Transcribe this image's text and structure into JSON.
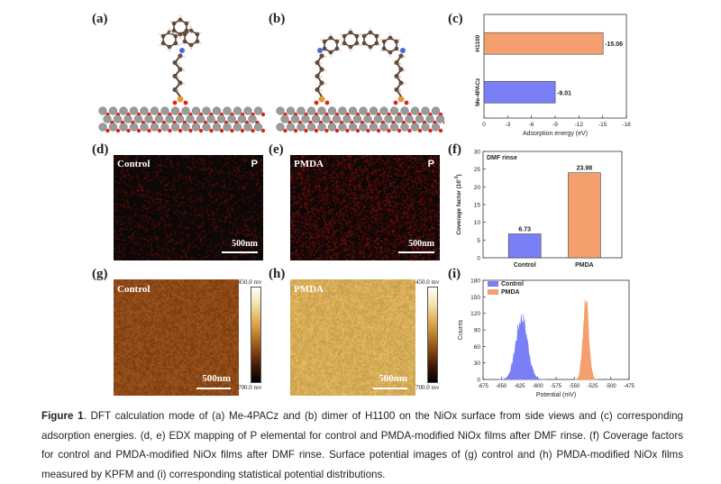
{
  "panel_labels": {
    "a": "(a)",
    "b": "(b)",
    "c": "(c)",
    "d": "(d)",
    "e": "(e)",
    "f": "(f)",
    "g": "(g)",
    "h": "(h)",
    "i": "(i)"
  },
  "edx": {
    "d": {
      "tag": "Control",
      "element": "P",
      "scale": "500nm"
    },
    "e": {
      "tag": "PMDA",
      "element": "P",
      "scale": "500nm"
    }
  },
  "kpfm": {
    "g": {
      "tag": "Control",
      "scale": "500nm",
      "cb_top": "450.0 mv",
      "cb_bottom": "700.0 mv"
    },
    "h": {
      "tag": "PMDA",
      "scale": "500nm",
      "cb_top": "450.0 mv",
      "cb_bottom": "700.0 mv"
    }
  },
  "colors": {
    "blue": "#7b7ff5",
    "orange": "#f4a06e",
    "atom_gray": "#9a9a9a",
    "atom_red": "#d7261e"
  },
  "caption": {
    "fig": "Figure 1",
    "text": ". DFT calculation mode of (a) Me-4PACz and (b) dimer of H1100 on the NiOx surface from side views and (c) corresponding adsorption energies. (d, e) EDX mapping of P elemental for control and PMDA-modified NiOx films after DMF rinse. (f) Coverage factors for control and PMDA-modified NiOx films after DMF rinse. Surface potential images of (g) control and (h) PMDA-modified NiOx films measured by KPFM and (i) corresponding statistical potential distributions."
  },
  "chart_data": [
    {
      "panel": "c",
      "type": "bar",
      "orientation": "horizontal",
      "categories": [
        "H1100",
        "Me-4PACz"
      ],
      "values": [
        -15.06,
        -9.01
      ],
      "data_labels": [
        "-15.06",
        "-9.01"
      ],
      "colors": [
        "#f4a06e",
        "#7b7ff5"
      ],
      "xlabel": "Adsorption energy (eV)",
      "xlim": [
        0,
        -18
      ],
      "xticks": [
        "0",
        "-3",
        "-6",
        "-9",
        "-12",
        "-15",
        "-18"
      ]
    },
    {
      "panel": "f",
      "type": "bar",
      "categories": [
        "Control",
        "PMDA"
      ],
      "values": [
        6.73,
        23.98
      ],
      "data_labels": [
        "6.73",
        "23.98"
      ],
      "colors": [
        "#7b7ff5",
        "#f4a06e"
      ],
      "annotation": "DMF rinse",
      "ylabel": "Coverage factor (10",
      "ylabel_sup": "-3",
      "ylabel_end": ")",
      "ylim": [
        0,
        30
      ],
      "yticks": [
        "0",
        "5",
        "10",
        "15",
        "20",
        "25",
        "30"
      ]
    },
    {
      "panel": "i",
      "type": "area",
      "xlabel": "Potential (mV)",
      "ylabel": "Counts",
      "xlim": [
        -675,
        -475
      ],
      "ylim": [
        0,
        180
      ],
      "xticks": [
        "-675",
        "-650",
        "-625",
        "-600",
        "-575",
        "-550",
        "-525",
        "-500",
        "-475"
      ],
      "yticks": [
        "0",
        "30",
        "60",
        "90",
        "120",
        "150",
        "180"
      ],
      "legend": [
        "Control",
        "PMDA"
      ],
      "series": [
        {
          "name": "Control",
          "center": -622,
          "sigma": 8,
          "peak": 110,
          "color": "#7b7ff5"
        },
        {
          "name": "PMDA",
          "center": -534,
          "sigma": 4,
          "peak": 143,
          "color": "#f4a06e"
        }
      ]
    }
  ]
}
